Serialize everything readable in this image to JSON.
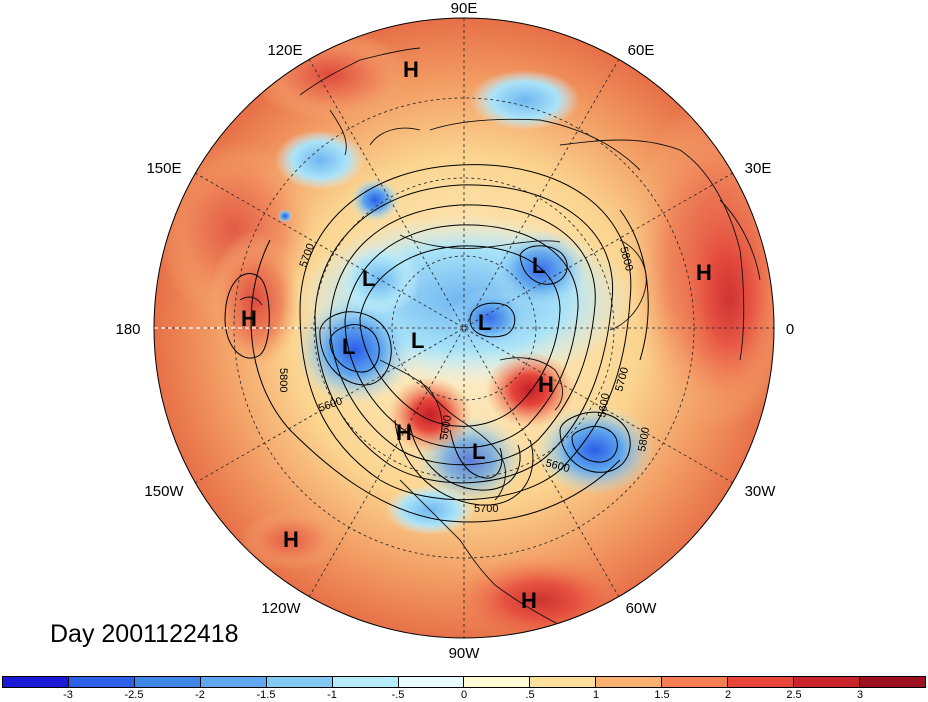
{
  "map": {
    "longitude_labels": {
      "top": "90E",
      "top_left": "120E",
      "top_right": "60E",
      "upper_left": "150E",
      "upper_right": "30E",
      "left": "180",
      "right": "0",
      "lower_left": "150W",
      "lower_right": "30W",
      "bottom_left": "120W",
      "bottom_right": "60W",
      "bottom": "90W"
    },
    "contour_labels": [
      "5700",
      "5800",
      "5800",
      "5600",
      "5700",
      "5600",
      "5800",
      "5600",
      "5700",
      "5600"
    ],
    "pressure_centers": [
      "H",
      "L",
      "L",
      "H",
      "L",
      "H",
      "L",
      "L",
      "H",
      "H",
      "L",
      "H",
      "H",
      "H"
    ],
    "day_label": "Day 2001122418",
    "colors": {
      "land_coast": "#111111",
      "ocean_bg": "#fde9b5",
      "warm": "#e8543a",
      "cold": "#3f86e6"
    }
  },
  "colorbar": {
    "ticks": [
      "-3",
      "-2.5",
      "-2",
      "-1.5",
      "-1",
      "-.5",
      "0",
      ".5",
      "1",
      "1.5",
      "2",
      "2.5",
      "3"
    ],
    "colors": [
      "#1a1ad6",
      "#2d5fe8",
      "#3f86e6",
      "#5fa7ee",
      "#82c9f4",
      "#b7ecfa",
      "#e9fbff",
      "#fefad6",
      "#fde09c",
      "#f9b070",
      "#f57d53",
      "#e8463b",
      "#c9232b",
      "#9c1120"
    ]
  }
}
